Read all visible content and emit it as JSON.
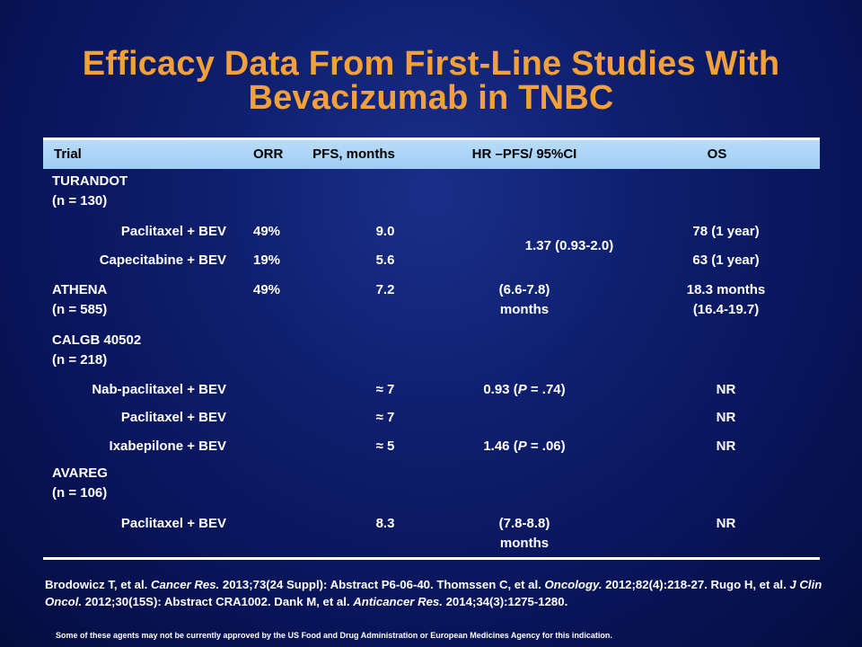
{
  "title": {
    "line1": "Efficacy Data From First-Line Studies With",
    "line2": "Bevacizumab in TNBC"
  },
  "table": {
    "headers": [
      "Trial",
      "ORR",
      "PFS, months",
      "HR –PFS/ 95%CI",
      "OS"
    ],
    "turandot": {
      "name": "TURANDOT",
      "n": "(n = 130)",
      "rows": [
        {
          "arm": "Paclitaxel + BEV",
          "orr": "49%",
          "pfs": "9.0",
          "os": "78 (1 year)"
        },
        {
          "arm": "Capecitabine + BEV",
          "orr": "19%",
          "pfs": "5.6",
          "os": "63 (1 year)"
        }
      ],
      "hr": "1.37 (0.93-2.0)"
    },
    "athena": {
      "name": "ATHENA",
      "n": "(n = 585)",
      "orr": "49%",
      "pfs": "7.2",
      "hr_line1": "(6.6-7.8)",
      "hr_line2": "months",
      "os_line1": "18.3 months",
      "os_line2": "(16.4-19.7)"
    },
    "calgb": {
      "name": "CALGB 40502",
      "n": "(n = 218)",
      "rows": [
        {
          "arm": "Nab-paclitaxel + BEV",
          "pfs": "≈ 7",
          "hr_pre": "0.93 (",
          "hr_p": "P",
          "hr_post": " = .74)",
          "os": "NR"
        },
        {
          "arm": "Paclitaxel + BEV",
          "pfs": "≈ 7",
          "os": "NR"
        },
        {
          "arm": "Ixabepilone + BEV",
          "pfs": "≈ 5",
          "hr_pre": "1.46 (",
          "hr_p": "P",
          "hr_post": " = .06)",
          "os": "NR"
        }
      ]
    },
    "avareg": {
      "name": "AVAREG",
      "n": "(n = 106)",
      "arm": "Paclitaxel + BEV",
      "pfs": "8.3",
      "hr_line1": "(7.8-8.8)",
      "hr_line2": "months",
      "os": "NR"
    }
  },
  "references": {
    "r1_authors": "Brodowicz T, et al. ",
    "r1_journal": "Cancer Res.",
    "r1_rest": " 2013;73(24 Suppl): Abstract P6-06-40. Thomssen C, et al. ",
    "r2_journal": "Oncology.",
    "r2_rest": " 2012;82(4):218-27. Rugo H, et al. ",
    "r3_journal": "J Clin Oncol.",
    "r3_rest": " 2012;30(15S): Abstract CRA1002. Dank M, et al. ",
    "r4_journal": "Anticancer Res.",
    "r4_rest": " 2014;34(3):1275-1280."
  },
  "disclaimer": "Some of these agents may not be currently approved by the US Food and Drug Administration or European Medicines Agency for this indication."
}
